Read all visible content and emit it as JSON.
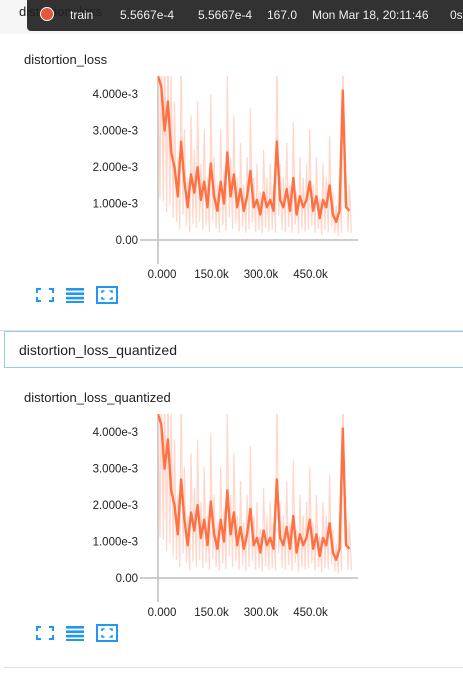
{
  "tooltip": {
    "run": "train",
    "smoothed": "5.5667e-4",
    "value": "5.5667e-4",
    "step": "167.0",
    "time": "Mon Mar 18, 20:11:46",
    "relative": "0s",
    "run_color": "#e4573a"
  },
  "section_title": "distortion_loss",
  "cards": [
    {
      "title": "distortion_loss"
    },
    {
      "title": "distortion_loss_quantized"
    }
  ],
  "group_header": "distortion_loss_quantized",
  "toolbar_icons": [
    "fit-to-screen-icon",
    "toggle-lines-icon",
    "fit-domain-icon"
  ],
  "colors": {
    "series": "#ff7043",
    "series_raw": "#ffccbc",
    "accent_icon": "#2196f3"
  },
  "chart_data": [
    {
      "type": "line",
      "title": "distortion_loss",
      "xlabel": "",
      "ylabel": "",
      "xlim": [
        0,
        600000
      ],
      "ylim": [
        0,
        0.0045
      ],
      "xticks": [
        "0.000",
        "150.0k",
        "300.0k",
        "450.0k"
      ],
      "yticks": [
        "0.00",
        "1.000e-3",
        "2.000e-3",
        "3.000e-3",
        "4.000e-3"
      ],
      "series": [
        {
          "x": [
            0,
            10000,
            20000,
            30000,
            40000,
            50000,
            60000,
            70000,
            80000,
            90000,
            100000,
            110000,
            120000,
            130000,
            140000,
            150000,
            160000,
            170000,
            180000,
            190000,
            200000,
            210000,
            220000,
            230000,
            240000,
            250000,
            260000,
            270000,
            280000,
            290000,
            300000,
            310000,
            320000,
            330000,
            340000,
            350000,
            360000,
            370000,
            380000,
            390000,
            400000,
            410000,
            420000,
            430000,
            440000,
            450000,
            460000,
            470000,
            480000,
            490000,
            500000,
            510000,
            520000,
            530000,
            540000,
            550000,
            560000,
            570000,
            580000
          ],
          "values": [
            0.0045,
            0.0042,
            0.003,
            0.0038,
            0.0024,
            0.002,
            0.0012,
            0.0027,
            0.0016,
            0.0009,
            0.0018,
            0.0013,
            0.002,
            0.0011,
            0.0016,
            0.0009,
            0.0021,
            0.0012,
            0.0008,
            0.0016,
            0.001,
            0.0024,
            0.0012,
            0.0018,
            0.0009,
            0.0014,
            0.0008,
            0.0012,
            0.0019,
            0.0009,
            0.0011,
            0.0007,
            0.0013,
            0.0009,
            0.0011,
            0.0008,
            0.0027,
            0.0011,
            0.0009,
            0.0014,
            0.0008,
            0.0017,
            0.0007,
            0.0012,
            0.0009,
            0.0011,
            0.0016,
            0.0008,
            0.0012,
            0.0006,
            0.0011,
            0.0009,
            0.0015,
            0.0007,
            0.0005,
            0.0008,
            0.0041,
            0.0009,
            0.0008
          ]
        }
      ]
    },
    {
      "type": "line",
      "title": "distortion_loss_quantized",
      "xlabel": "",
      "ylabel": "",
      "xlim": [
        0,
        600000
      ],
      "ylim": [
        0,
        0.0045
      ],
      "xticks": [
        "0.000",
        "150.0k",
        "300.0k",
        "450.0k"
      ],
      "yticks": [
        "0.00",
        "1.000e-3",
        "2.000e-3",
        "3.000e-3",
        "4.000e-3"
      ],
      "series": [
        {
          "x": [
            0,
            10000,
            20000,
            30000,
            40000,
            50000,
            60000,
            70000,
            80000,
            90000,
            100000,
            110000,
            120000,
            130000,
            140000,
            150000,
            160000,
            170000,
            180000,
            190000,
            200000,
            210000,
            220000,
            230000,
            240000,
            250000,
            260000,
            270000,
            280000,
            290000,
            300000,
            310000,
            320000,
            330000,
            340000,
            350000,
            360000,
            370000,
            380000,
            390000,
            400000,
            410000,
            420000,
            430000,
            440000,
            450000,
            460000,
            470000,
            480000,
            490000,
            500000,
            510000,
            520000,
            530000,
            540000,
            550000,
            560000,
            570000,
            580000
          ],
          "values": [
            0.0045,
            0.0042,
            0.003,
            0.0038,
            0.0024,
            0.002,
            0.0012,
            0.0027,
            0.0016,
            0.0009,
            0.0018,
            0.0013,
            0.002,
            0.0011,
            0.0016,
            0.0009,
            0.0021,
            0.0012,
            0.0008,
            0.0016,
            0.001,
            0.0024,
            0.0012,
            0.0018,
            0.0009,
            0.0014,
            0.0008,
            0.0012,
            0.0019,
            0.0009,
            0.0011,
            0.0007,
            0.0013,
            0.0009,
            0.0011,
            0.0008,
            0.0027,
            0.0011,
            0.0009,
            0.0014,
            0.0008,
            0.0017,
            0.0007,
            0.0012,
            0.0009,
            0.0011,
            0.0016,
            0.0008,
            0.0012,
            0.0006,
            0.0011,
            0.0009,
            0.0015,
            0.0007,
            0.0005,
            0.0008,
            0.0041,
            0.0009,
            0.0008
          ]
        }
      ]
    }
  ]
}
